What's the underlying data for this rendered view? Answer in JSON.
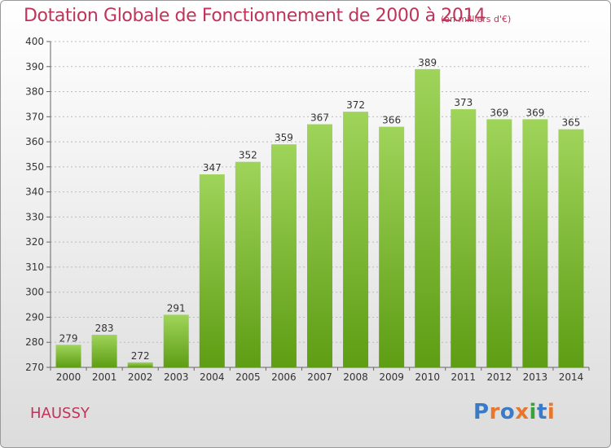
{
  "title": "Dotation Globale de Fonctionnement de 2000 à 2014",
  "units": "(en milliers d'€)",
  "place": "HAUSSY",
  "logo": {
    "text": "Proxiti",
    "letter_colors": [
      "#3a7bc8",
      "#e8762d",
      "#3a7bc8",
      "#e8762d",
      "#3aa23a",
      "#3a7bc8",
      "#e8762d"
    ]
  },
  "colors": {
    "title": "#c0335a",
    "bar_top": "#9fd45a",
    "bar_bottom": "#5e9d14",
    "grid": "#bbbbbb"
  },
  "chart_data": {
    "type": "bar",
    "title": "Dotation Globale de Fonctionnement de 2000 à 2014",
    "subtitle": "(en milliers d'€)",
    "xlabel": "",
    "ylabel": "",
    "categories": [
      "2000",
      "2001",
      "2002",
      "2003",
      "2004",
      "2005",
      "2006",
      "2007",
      "2008",
      "2009",
      "2010",
      "2011",
      "2012",
      "2013",
      "2014"
    ],
    "values": [
      279,
      283,
      272,
      291,
      347,
      352,
      359,
      367,
      372,
      366,
      389,
      373,
      369,
      369,
      365
    ],
    "ylim": [
      270,
      400
    ],
    "yticks": [
      270,
      280,
      290,
      300,
      310,
      320,
      330,
      340,
      350,
      360,
      370,
      380,
      390,
      400
    ],
    "grid": true,
    "data_labels": true
  }
}
